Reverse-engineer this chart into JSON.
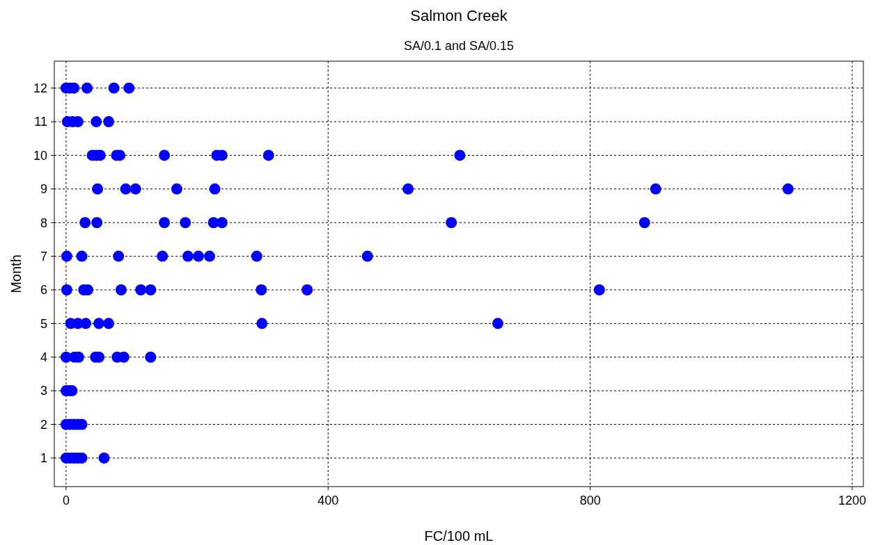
{
  "chart_data": {
    "type": "scatter",
    "title": "Salmon Creek",
    "subtitle": "SA/0.1 and SA/0.15",
    "xlabel": "FC/100 mL",
    "ylabel": "Month",
    "xlim": [
      -18,
      1217
    ],
    "ylim": [
      0.15,
      12.8
    ],
    "xticks": [
      0,
      400,
      800,
      1200
    ],
    "yticks": [
      1,
      2,
      3,
      4,
      5,
      6,
      7,
      8,
      9,
      10,
      11,
      12
    ],
    "grid": true,
    "marker": "circle",
    "series": [
      {
        "color": "#0000ff",
        "x": [
          0,
          6,
          12,
          32,
          73,
          96,
          2,
          10,
          18,
          46,
          65,
          40,
          46,
          52,
          77,
          82,
          150,
          230,
          238,
          309,
          601,
          48,
          91,
          106,
          169,
          227,
          522,
          900,
          1102,
          29,
          47,
          150,
          182,
          225,
          238,
          588,
          883,
          1,
          24,
          80,
          147,
          186,
          202,
          219,
          291,
          460,
          1,
          27,
          33,
          84,
          114,
          129,
          298,
          368,
          814,
          7,
          18,
          30,
          50,
          65,
          299,
          659,
          0,
          13,
          19,
          45,
          50,
          78,
          88,
          129,
          0,
          4,
          9,
          0,
          6,
          12,
          18,
          24,
          0,
          6,
          12,
          18,
          24,
          58
        ],
        "values": [
          12,
          12,
          12,
          12,
          12,
          12,
          11,
          11,
          11,
          11,
          11,
          10,
          10,
          10,
          10,
          10,
          10,
          10,
          10,
          10,
          10,
          9,
          9,
          9,
          9,
          9,
          9,
          9,
          9,
          8,
          8,
          8,
          8,
          8,
          8,
          8,
          8,
          7,
          7,
          7,
          7,
          7,
          7,
          7,
          7,
          7,
          6,
          6,
          6,
          6,
          6,
          6,
          6,
          6,
          6,
          5,
          5,
          5,
          5,
          5,
          5,
          5,
          4,
          4,
          4,
          4,
          4,
          4,
          4,
          4,
          3,
          3,
          3,
          2,
          2,
          2,
          2,
          2,
          1,
          1,
          1,
          1,
          1,
          1
        ]
      }
    ]
  }
}
